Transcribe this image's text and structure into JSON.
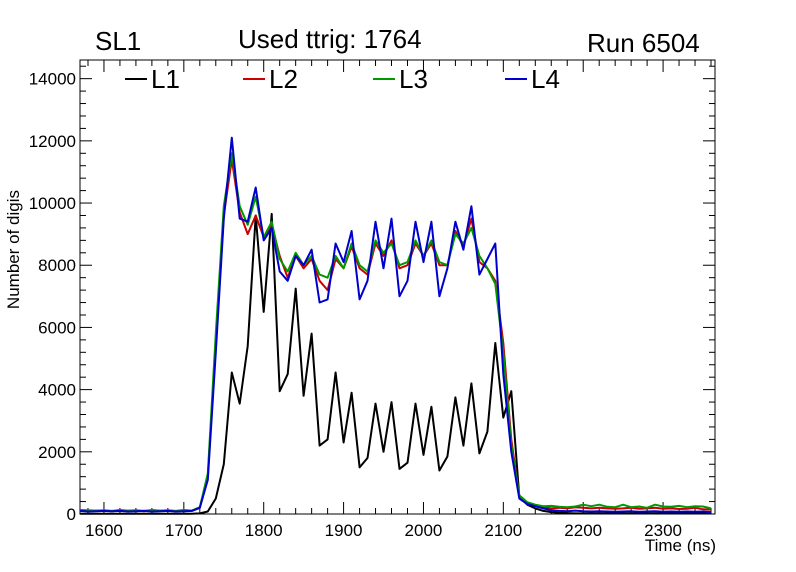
{
  "header": {
    "left_label": "SL1",
    "title": "Used ttrig: 1764",
    "right_label": "Run 6504"
  },
  "chart_data": {
    "type": "line",
    "title": "Used ttrig: 1764",
    "xlabel": "Time (ns)",
    "ylabel": "Number of digis",
    "xlim": [
      1570,
      2365
    ],
    "ylim": [
      0,
      14600
    ],
    "x_ticks": [
      1600,
      1700,
      1800,
      1900,
      2000,
      2100,
      2200,
      2300
    ],
    "y_ticks": [
      0,
      2000,
      4000,
      6000,
      8000,
      10000,
      12000,
      14000
    ],
    "grid": false,
    "legend_position": "top",
    "x": [
      1570,
      1580,
      1590,
      1600,
      1610,
      1620,
      1630,
      1640,
      1650,
      1660,
      1670,
      1680,
      1690,
      1700,
      1710,
      1720,
      1730,
      1740,
      1750,
      1760,
      1770,
      1780,
      1790,
      1800,
      1810,
      1820,
      1830,
      1840,
      1850,
      1860,
      1870,
      1880,
      1890,
      1900,
      1910,
      1920,
      1930,
      1940,
      1950,
      1960,
      1970,
      1980,
      1990,
      2000,
      2010,
      2020,
      2030,
      2040,
      2050,
      2060,
      2070,
      2080,
      2090,
      2100,
      2110,
      2120,
      2130,
      2140,
      2150,
      2160,
      2170,
      2180,
      2190,
      2200,
      2210,
      2220,
      2230,
      2240,
      2250,
      2260,
      2270,
      2280,
      2290,
      2300,
      2310,
      2320,
      2330,
      2340,
      2350,
      2360
    ],
    "series": [
      {
        "name": "L1",
        "color": "#000000",
        "values": [
          10,
          10,
          10,
          10,
          10,
          10,
          10,
          10,
          10,
          10,
          10,
          10,
          10,
          10,
          10,
          20,
          80,
          500,
          1600,
          4550,
          3550,
          5400,
          9600,
          6500,
          9650,
          3950,
          4500,
          7250,
          3800,
          5800,
          2200,
          2400,
          4550,
          2300,
          3900,
          1500,
          1800,
          3550,
          2000,
          3600,
          1450,
          1650,
          3550,
          1900,
          3450,
          1400,
          1850,
          3750,
          2200,
          4200,
          1950,
          2650,
          5500,
          3100,
          3950,
          550,
          300,
          180,
          100,
          60,
          40,
          30,
          20,
          20,
          20,
          20,
          20,
          20,
          20,
          20,
          20,
          20,
          20,
          20,
          20,
          20,
          20,
          20,
          20,
          20
        ]
      },
      {
        "name": "L2",
        "color": "#cc0000",
        "values": [
          120,
          100,
          110,
          110,
          90,
          120,
          100,
          110,
          90,
          120,
          100,
          110,
          90,
          120,
          100,
          200,
          1200,
          5500,
          9600,
          11400,
          9700,
          9000,
          9600,
          8900,
          9300,
          8300,
          7600,
          8300,
          7900,
          8200,
          7500,
          7200,
          8200,
          7900,
          8600,
          7900,
          7700,
          8700,
          8300,
          8800,
          7900,
          8000,
          8700,
          8300,
          8700,
          8000,
          8000,
          9100,
          8600,
          9500,
          8100,
          7900,
          7500,
          5500,
          2400,
          550,
          350,
          280,
          220,
          180,
          200,
          180,
          220,
          200,
          180,
          200,
          180,
          170,
          180,
          200,
          170,
          180,
          200,
          170,
          180,
          160,
          170,
          200,
          150,
          140
        ]
      },
      {
        "name": "L3",
        "color": "#009900",
        "values": [
          130,
          120,
          110,
          120,
          100,
          130,
          110,
          120,
          100,
          130,
          110,
          120,
          100,
          130,
          110,
          220,
          1300,
          5800,
          9900,
          11600,
          9900,
          9300,
          10200,
          8900,
          9400,
          8200,
          7800,
          8400,
          8000,
          8300,
          7700,
          7600,
          8300,
          7900,
          8700,
          8000,
          7800,
          8800,
          8400,
          8700,
          8000,
          8100,
          8800,
          8300,
          8800,
          8100,
          8000,
          9000,
          8700,
          9200,
          8300,
          7900,
          7400,
          5200,
          2200,
          600,
          380,
          300,
          250,
          260,
          230,
          220,
          240,
          300,
          250,
          300,
          230,
          220,
          300,
          220,
          240,
          200,
          300,
          240,
          230,
          260,
          220,
          250,
          240,
          180
        ]
      },
      {
        "name": "L4",
        "color": "#0000cc",
        "values": [
          100,
          80,
          90,
          100,
          90,
          100,
          80,
          90,
          100,
          80,
          90,
          100,
          80,
          90,
          100,
          200,
          1100,
          5200,
          9500,
          12100,
          9500,
          9400,
          10500,
          8800,
          9200,
          7800,
          7500,
          8300,
          8000,
          8500,
          6800,
          6900,
          8700,
          8100,
          9100,
          6900,
          7500,
          9400,
          7900,
          9500,
          7000,
          7500,
          9400,
          8100,
          9400,
          7000,
          7900,
          9400,
          8500,
          9900,
          7700,
          8200,
          8700,
          4500,
          2000,
          500,
          320,
          250,
          180,
          120,
          100,
          90,
          110,
          90,
          80,
          90,
          80,
          70,
          80,
          90,
          70,
          80,
          90,
          70,
          80,
          70,
          80,
          70,
          80,
          60
        ]
      }
    ]
  }
}
